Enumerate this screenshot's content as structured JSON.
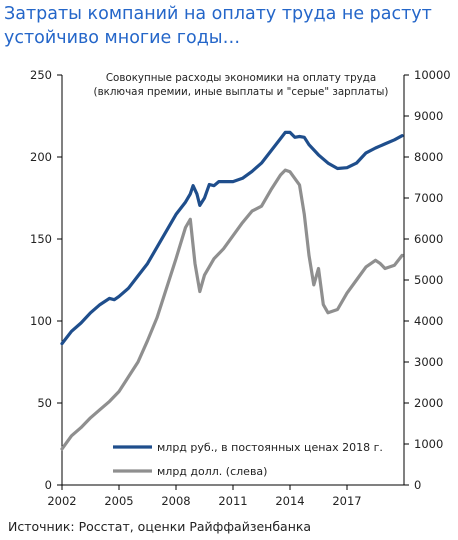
{
  "headline": {
    "line1": "Затраты компаний на оплату труда не растут",
    "line2": "устойчиво многие годы…"
  },
  "source": "Источник: Росстат, оценки Райффайзенбанка",
  "chart_data": {
    "type": "line",
    "title_lines": [
      "Совокупные расходы экономики на оплату труда",
      "(включая премии, иные выплаты и \"серые\" зарплаты)"
    ],
    "x_ticks": [
      "2002",
      "2005",
      "2008",
      "2011",
      "2014",
      "2017"
    ],
    "y_left": {
      "ticks": [
        "0",
        "50",
        "100",
        "150",
        "200",
        "250"
      ],
      "min": 0,
      "max": 250
    },
    "y_right": {
      "ticks": [
        "0",
        "1000",
        "2000",
        "3000",
        "4000",
        "5000",
        "6000",
        "7000",
        "8000",
        "9000",
        "10000"
      ],
      "min": 0,
      "max": 10000
    },
    "legend_placement": "bottom-right",
    "grid": false,
    "series": [
      {
        "name": "млрд руб., в постоянных ценах 2018 г.",
        "axis": "right",
        "color": "#1f4e8c",
        "points": [
          [
            2002.0,
            3450
          ],
          [
            2002.5,
            3750
          ],
          [
            2003.0,
            3950
          ],
          [
            2003.5,
            4200
          ],
          [
            2004.0,
            4400
          ],
          [
            2004.5,
            4550
          ],
          [
            2004.75,
            4520
          ],
          [
            2005.0,
            4600
          ],
          [
            2005.5,
            4800
          ],
          [
            2006.0,
            5100
          ],
          [
            2006.5,
            5400
          ],
          [
            2007.0,
            5800
          ],
          [
            2007.5,
            6200
          ],
          [
            2008.0,
            6600
          ],
          [
            2008.5,
            6900
          ],
          [
            2008.75,
            7100
          ],
          [
            2008.9,
            7300
          ],
          [
            2009.1,
            7100
          ],
          [
            2009.25,
            6820
          ],
          [
            2009.5,
            7000
          ],
          [
            2009.75,
            7330
          ],
          [
            2010.0,
            7300
          ],
          [
            2010.25,
            7400
          ],
          [
            2010.5,
            7400
          ],
          [
            2011.0,
            7400
          ],
          [
            2011.5,
            7480
          ],
          [
            2012.0,
            7650
          ],
          [
            2012.5,
            7850
          ],
          [
            2013.0,
            8150
          ],
          [
            2013.5,
            8450
          ],
          [
            2013.75,
            8600
          ],
          [
            2014.0,
            8600
          ],
          [
            2014.25,
            8480
          ],
          [
            2014.5,
            8500
          ],
          [
            2014.75,
            8480
          ],
          [
            2015.0,
            8300
          ],
          [
            2015.5,
            8050
          ],
          [
            2016.0,
            7850
          ],
          [
            2016.5,
            7720
          ],
          [
            2017.0,
            7740
          ],
          [
            2017.5,
            7850
          ],
          [
            2018.0,
            8100
          ],
          [
            2018.5,
            8220
          ],
          [
            2019.0,
            8320
          ],
          [
            2019.5,
            8420
          ],
          [
            2019.9,
            8520
          ]
        ]
      },
      {
        "name": "млрд долл. (слева)",
        "axis": "left",
        "color": "#8f8f8f",
        "points": [
          [
            2002.0,
            22
          ],
          [
            2002.5,
            30
          ],
          [
            2003.0,
            35
          ],
          [
            2003.5,
            41
          ],
          [
            2004.0,
            46
          ],
          [
            2004.5,
            51
          ],
          [
            2005.0,
            57
          ],
          [
            2005.5,
            66
          ],
          [
            2006.0,
            75
          ],
          [
            2006.5,
            88
          ],
          [
            2007.0,
            102
          ],
          [
            2007.5,
            120
          ],
          [
            2008.0,
            138
          ],
          [
            2008.5,
            157
          ],
          [
            2008.75,
            162
          ],
          [
            2009.0,
            135
          ],
          [
            2009.25,
            118
          ],
          [
            2009.5,
            128
          ],
          [
            2010.0,
            138
          ],
          [
            2010.5,
            144
          ],
          [
            2011.0,
            152
          ],
          [
            2011.5,
            160
          ],
          [
            2012.0,
            167
          ],
          [
            2012.5,
            170
          ],
          [
            2013.0,
            180
          ],
          [
            2013.5,
            189
          ],
          [
            2013.75,
            192
          ],
          [
            2014.0,
            191
          ],
          [
            2014.5,
            183
          ],
          [
            2014.75,
            165
          ],
          [
            2015.0,
            140
          ],
          [
            2015.25,
            122
          ],
          [
            2015.5,
            132
          ],
          [
            2015.75,
            110
          ],
          [
            2016.0,
            105
          ],
          [
            2016.5,
            107
          ],
          [
            2017.0,
            117
          ],
          [
            2017.5,
            125
          ],
          [
            2018.0,
            133
          ],
          [
            2018.5,
            137
          ],
          [
            2018.75,
            135
          ],
          [
            2019.0,
            132
          ],
          [
            2019.5,
            134
          ],
          [
            2019.9,
            140
          ]
        ]
      }
    ]
  }
}
